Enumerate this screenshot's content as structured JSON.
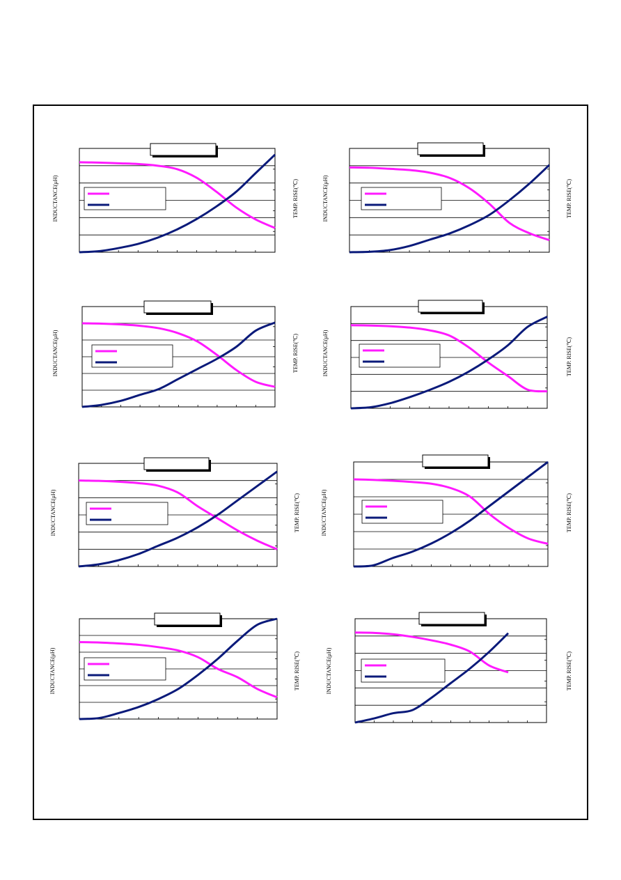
{
  "axis_labels": {
    "left": "INDUCTANCE(μH)",
    "right": "TEMP. RISE(℃)"
  },
  "colors": {
    "inductance": "#ff1aff",
    "temp_rise": "#0a1a7a",
    "grid": "#000000"
  },
  "chart_data": [
    {
      "type": "line",
      "title": "",
      "legend": "top-left",
      "x": [
        0,
        0.1,
        0.2,
        0.3,
        0.4,
        0.5,
        0.6,
        0.7,
        0.8,
        0.9,
        1.0
      ],
      "ylim_left": [
        0,
        6
      ],
      "ylim_right": [
        0,
        5
      ],
      "series": [
        {
          "axis": "left",
          "values": [
            5.2,
            5.18,
            5.14,
            5.1,
            5.0,
            4.8,
            4.3,
            3.5,
            2.6,
            1.9,
            1.4
          ]
        },
        {
          "axis": "right",
          "values": [
            0,
            0.05,
            0.2,
            0.4,
            0.7,
            1.1,
            1.6,
            2.2,
            2.9,
            3.8,
            4.7
          ]
        }
      ]
    },
    {
      "type": "line",
      "title": "",
      "legend": "top-left",
      "x": [
        0,
        0.1,
        0.2,
        0.3,
        0.4,
        0.5,
        0.6,
        0.7,
        0.8,
        0.9,
        1.0
      ],
      "ylim_left": [
        0,
        6
      ],
      "ylim_right": [
        0,
        5
      ],
      "series": [
        {
          "axis": "left",
          "values": [
            4.9,
            4.88,
            4.82,
            4.75,
            4.6,
            4.3,
            3.7,
            2.8,
            1.7,
            1.1,
            0.7
          ]
        },
        {
          "axis": "right",
          "values": [
            0,
            0.02,
            0.1,
            0.3,
            0.6,
            0.9,
            1.3,
            1.8,
            2.5,
            3.3,
            4.2
          ]
        }
      ]
    },
    {
      "type": "line",
      "title": "",
      "legend": "top-left",
      "x": [
        0,
        0.1,
        0.2,
        0.3,
        0.4,
        0.5,
        0.6,
        0.7,
        0.8,
        0.9,
        1.0
      ],
      "ylim_left": [
        0,
        6
      ],
      "ylim_right": [
        0,
        5
      ],
      "series": [
        {
          "axis": "left",
          "values": [
            5.0,
            4.98,
            4.93,
            4.85,
            4.7,
            4.4,
            3.9,
            3.1,
            2.2,
            1.5,
            1.2
          ]
        },
        {
          "axis": "right",
          "values": [
            0,
            0.1,
            0.3,
            0.6,
            0.9,
            1.4,
            1.9,
            2.4,
            3.0,
            3.8,
            4.2
          ]
        }
      ]
    },
    {
      "type": "line",
      "title": "",
      "legend": "top-left",
      "x": [
        0,
        0.1,
        0.2,
        0.3,
        0.4,
        0.5,
        0.6,
        0.7,
        0.8,
        0.9,
        1.0
      ],
      "ylim_left": [
        0,
        6
      ],
      "ylim_right": [
        0,
        5
      ],
      "series": [
        {
          "axis": "left",
          "values": [
            4.9,
            4.88,
            4.84,
            4.76,
            4.6,
            4.3,
            3.6,
            2.7,
            1.9,
            1.1,
            1.0
          ]
        },
        {
          "axis": "right",
          "values": [
            0,
            0.05,
            0.25,
            0.55,
            0.9,
            1.3,
            1.8,
            2.4,
            3.1,
            4.0,
            4.5
          ]
        }
      ]
    },
    {
      "type": "line",
      "title": "",
      "legend": "top-left",
      "x": [
        0,
        0.1,
        0.2,
        0.3,
        0.4,
        0.5,
        0.6,
        0.7,
        0.8,
        0.9,
        1.0
      ],
      "ylim_left": [
        0,
        6
      ],
      "ylim_right": [
        0,
        5
      ],
      "series": [
        {
          "axis": "left",
          "values": [
            5.0,
            4.98,
            4.93,
            4.85,
            4.7,
            4.3,
            3.5,
            2.8,
            2.1,
            1.5,
            1.0
          ]
        },
        {
          "axis": "right",
          "values": [
            0,
            0.1,
            0.3,
            0.6,
            1.0,
            1.4,
            1.9,
            2.5,
            3.2,
            3.9,
            4.6
          ]
        }
      ]
    },
    {
      "type": "line",
      "title": "",
      "legend": "top-left",
      "x": [
        0,
        0.1,
        0.2,
        0.3,
        0.4,
        0.5,
        0.6,
        0.7,
        0.8,
        0.9,
        1.0
      ],
      "ylim_left": [
        0,
        6
      ],
      "ylim_right": [
        0,
        5
      ],
      "series": [
        {
          "axis": "left",
          "values": [
            5.0,
            4.97,
            4.92,
            4.85,
            4.75,
            4.5,
            4.0,
            3.0,
            2.2,
            1.6,
            1.3
          ]
        },
        {
          "axis": "right",
          "values": [
            0,
            0.05,
            0.4,
            0.7,
            1.1,
            1.6,
            2.2,
            2.9,
            3.6,
            4.3,
            5.0
          ]
        }
      ]
    },
    {
      "type": "line",
      "title": "",
      "legend": "top-left",
      "x": [
        0,
        0.1,
        0.2,
        0.3,
        0.4,
        0.5,
        0.6,
        0.7,
        0.8,
        0.9,
        1.0
      ],
      "ylim_left": [
        0,
        6
      ],
      "ylim_right": [
        0,
        5
      ],
      "series": [
        {
          "axis": "left",
          "values": [
            4.6,
            4.58,
            4.52,
            4.44,
            4.3,
            4.1,
            3.7,
            3.0,
            2.5,
            1.8,
            1.3
          ]
        },
        {
          "axis": "right",
          "values": [
            0,
            0.05,
            0.3,
            0.6,
            1.0,
            1.5,
            2.2,
            3.0,
            3.9,
            4.7,
            5.0
          ]
        }
      ]
    },
    {
      "type": "line",
      "title": "",
      "legend": "top-left",
      "x": [
        0,
        0.1,
        0.2,
        0.3,
        0.4,
        0.5,
        0.6,
        0.7,
        0.8
      ],
      "ylim_left": [
        0,
        6
      ],
      "ylim_right": [
        0,
        5
      ],
      "series": [
        {
          "axis": "left",
          "values": [
            5.2,
            5.18,
            5.1,
            4.95,
            4.75,
            4.5,
            4.1,
            3.3,
            2.9
          ]
        },
        {
          "axis": "right",
          "values": [
            0,
            0.2,
            0.45,
            0.6,
            1.2,
            1.9,
            2.6,
            3.4,
            4.3
          ]
        }
      ]
    }
  ]
}
